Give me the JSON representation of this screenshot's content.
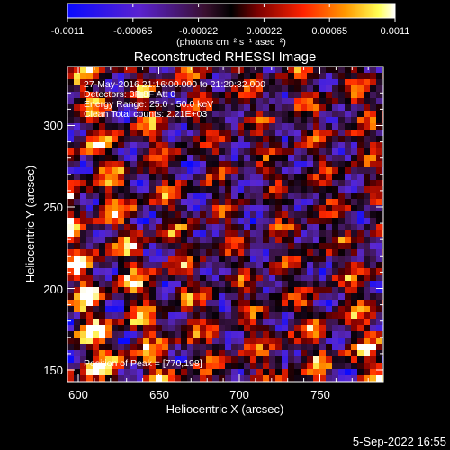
{
  "colorbar": {
    "ticks": [
      "-0.0011",
      "-0.00065",
      "-0.00022",
      "0.00022",
      "0.00065",
      "0.0011"
    ],
    "units": "(photons cm⁻² s⁻¹ asec⁻²)"
  },
  "title": "Reconstructed RHESSI Image",
  "info": {
    "line1": "27-May-2016 21:16:00.000 to 21:20:32.000",
    "line2": "Detectors: 3F 8F  Att 0",
    "line3": "Energy Range: 25.0 - 50.0 keV",
    "line4": "Clean     Total counts: 2.21E+03"
  },
  "peak_text": "Position of Peak = [770,198]",
  "axes": {
    "xlabel": "Heliocentric X (arcsec)",
    "ylabel": "Heliocentric Y (arcsec)",
    "xticks": [
      "600",
      "650",
      "700",
      "750"
    ],
    "yticks": [
      "150",
      "200",
      "250",
      "300"
    ]
  },
  "timestamp": "5-Sep-2022 16:55",
  "colors": {
    "background": "#000000",
    "axes": "#ffffff"
  }
}
